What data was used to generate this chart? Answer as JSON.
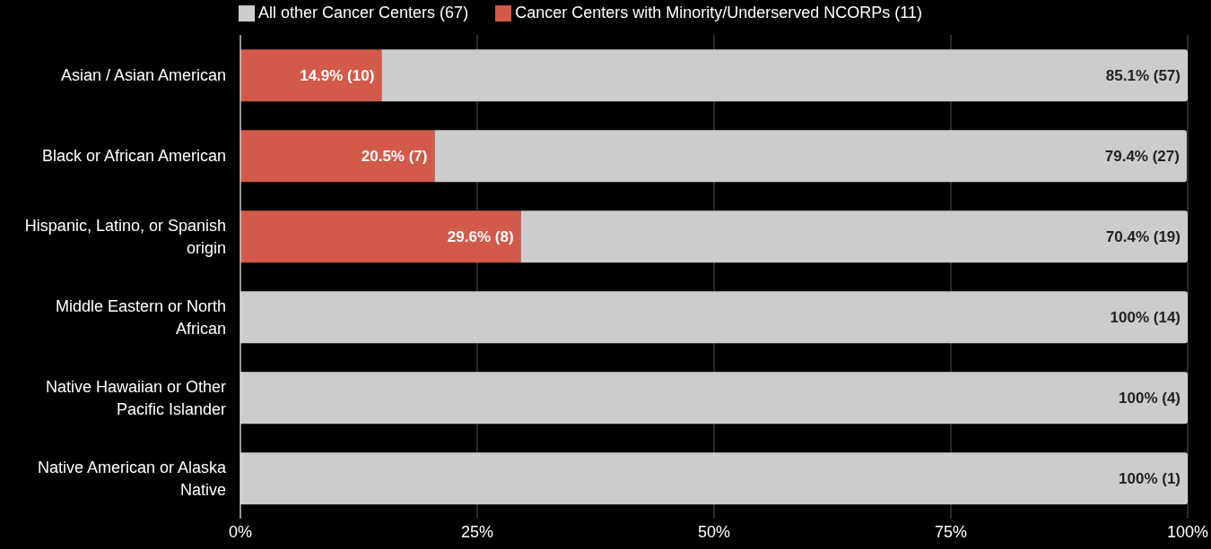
{
  "chart_data": {
    "type": "bar",
    "orientation": "horizontal",
    "stacked": true,
    "categories": [
      "Asian / Asian American",
      "Black or African American",
      "Hispanic, Latino, or Spanish origin",
      "Middle Eastern or North African",
      "Native Hawaiian or Other Pacific Islander",
      "Native American or Alaska Native"
    ],
    "series": [
      {
        "name": "Cancer Centers with Minority/Underserved NCORPs (11)",
        "color": "#d35a4a",
        "values": [
          14.9,
          20.5,
          29.6,
          null,
          null,
          null
        ],
        "value_labels": [
          "14.9% (10)",
          "20.5% (7)",
          "29.6% (8)",
          null,
          null,
          null
        ]
      },
      {
        "name": "All other Cancer Centers (67)",
        "color": "#cccccc",
        "values": [
          85.1,
          79.4,
          70.4,
          100,
          100,
          100
        ],
        "value_labels": [
          "85.1% (57)",
          "79.4% (27)",
          "70.4% (19)",
          "100% (14)",
          "100% (4)",
          "100% (1)"
        ]
      }
    ],
    "xlim": [
      0,
      100
    ],
    "xticks": [
      {
        "value": 0,
        "label": "0%"
      },
      {
        "value": 25,
        "label": "25%"
      },
      {
        "value": 50,
        "label": "50%"
      },
      {
        "value": 75,
        "label": "75%"
      },
      {
        "value": 100,
        "label": "100%"
      }
    ],
    "grid": "x",
    "legend": "top"
  }
}
